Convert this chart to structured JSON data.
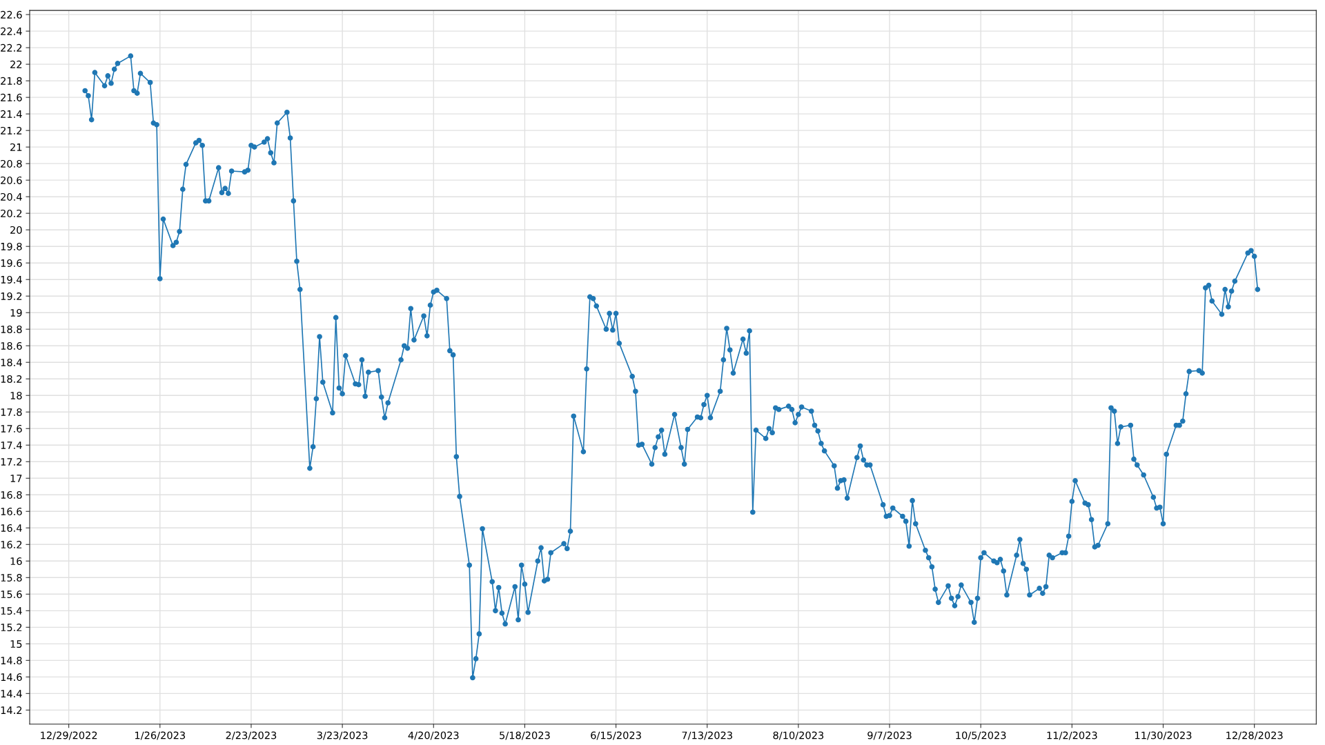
{
  "chart_data": {
    "type": "line",
    "xlim": [
      "2022-12-17",
      "2024-01-16"
    ],
    "xticks": [
      {
        "value": "2022-12-29",
        "label": "12/29/2022"
      },
      {
        "value": "2023-01-26",
        "label": "1/26/2023"
      },
      {
        "value": "2023-02-23",
        "label": "2/23/2023"
      },
      {
        "value": "2023-03-23",
        "label": "3/23/2023"
      },
      {
        "value": "2023-04-20",
        "label": "4/20/2023"
      },
      {
        "value": "2023-05-18",
        "label": "5/18/2023"
      },
      {
        "value": "2023-06-15",
        "label": "6/15/2023"
      },
      {
        "value": "2023-07-13",
        "label": "7/13/2023"
      },
      {
        "value": "2023-08-10",
        "label": "8/10/2023"
      },
      {
        "value": "2023-09-07",
        "label": "9/7/2023"
      },
      {
        "value": "2023-10-05",
        "label": "10/5/2023"
      },
      {
        "value": "2023-11-02",
        "label": "11/2/2023"
      },
      {
        "value": "2023-11-30",
        "label": "11/30/2023"
      },
      {
        "value": "2023-12-28",
        "label": "12/28/2023"
      }
    ],
    "ylim": [
      14.03,
      22.65
    ],
    "yticks": [
      14.2,
      14.4,
      14.6,
      14.8,
      15,
      15.2,
      15.4,
      15.6,
      15.8,
      16,
      16.2,
      16.4,
      16.6,
      16.8,
      17,
      17.2,
      17.4,
      17.6,
      17.8,
      18,
      18.2,
      18.4,
      18.6,
      18.8,
      19,
      19.2,
      19.4,
      19.6,
      19.8,
      20,
      20.2,
      20.4,
      20.6,
      20.8,
      21,
      21.2,
      21.4,
      21.6,
      21.8,
      22,
      22.2,
      22.4,
      22.6
    ],
    "grid": true,
    "marker": "circle",
    "line_style": "solid",
    "series": [
      {
        "color": "#1f77b4",
        "x": [
          "2023-01-03",
          "2023-01-04",
          "2023-01-05",
          "2023-01-06",
          "2023-01-09",
          "2023-01-10",
          "2023-01-11",
          "2023-01-12",
          "2023-01-13",
          "2023-01-17",
          "2023-01-18",
          "2023-01-19",
          "2023-01-20",
          "2023-01-23",
          "2023-01-24",
          "2023-01-25",
          "2023-01-26",
          "2023-01-27",
          "2023-01-30",
          "2023-01-31",
          "2023-02-01",
          "2023-02-02",
          "2023-02-03",
          "2023-02-06",
          "2023-02-07",
          "2023-02-08",
          "2023-02-09",
          "2023-02-10",
          "2023-02-13",
          "2023-02-14",
          "2023-02-15",
          "2023-02-16",
          "2023-02-17",
          "2023-02-21",
          "2023-02-22",
          "2023-02-23",
          "2023-02-24",
          "2023-02-27",
          "2023-02-28",
          "2023-03-01",
          "2023-03-02",
          "2023-03-03",
          "2023-03-06",
          "2023-03-07",
          "2023-03-08",
          "2023-03-09",
          "2023-03-10",
          "2023-03-13",
          "2023-03-14",
          "2023-03-15",
          "2023-03-16",
          "2023-03-17",
          "2023-03-20",
          "2023-03-21",
          "2023-03-22",
          "2023-03-23",
          "2023-03-24",
          "2023-03-27",
          "2023-03-28",
          "2023-03-29",
          "2023-03-30",
          "2023-03-31",
          "2023-04-03",
          "2023-04-04",
          "2023-04-05",
          "2023-04-06",
          "2023-04-10",
          "2023-04-11",
          "2023-04-12",
          "2023-04-13",
          "2023-04-14",
          "2023-04-17",
          "2023-04-18",
          "2023-04-19",
          "2023-04-20",
          "2023-04-21",
          "2023-04-24",
          "2023-04-25",
          "2023-04-26",
          "2023-04-27",
          "2023-04-28",
          "2023-05-01",
          "2023-05-02",
          "2023-05-03",
          "2023-05-04",
          "2023-05-05",
          "2023-05-08",
          "2023-05-09",
          "2023-05-10",
          "2023-05-11",
          "2023-05-12",
          "2023-05-15",
          "2023-05-16",
          "2023-05-17",
          "2023-05-18",
          "2023-05-19",
          "2023-05-22",
          "2023-05-23",
          "2023-05-24",
          "2023-05-25",
          "2023-05-26",
          "2023-05-30",
          "2023-05-31",
          "2023-06-01",
          "2023-06-02",
          "2023-06-05",
          "2023-06-06",
          "2023-06-07",
          "2023-06-08",
          "2023-06-09",
          "2023-06-12",
          "2023-06-13",
          "2023-06-14",
          "2023-06-15",
          "2023-06-16",
          "2023-06-20",
          "2023-06-21",
          "2023-06-22",
          "2023-06-23",
          "2023-06-26",
          "2023-06-27",
          "2023-06-28",
          "2023-06-29",
          "2023-06-30",
          "2023-07-03",
          "2023-07-05",
          "2023-07-06",
          "2023-07-07",
          "2023-07-10",
          "2023-07-11",
          "2023-07-12",
          "2023-07-13",
          "2023-07-14",
          "2023-07-17",
          "2023-07-18",
          "2023-07-19",
          "2023-07-20",
          "2023-07-21",
          "2023-07-24",
          "2023-07-25",
          "2023-07-26",
          "2023-07-27",
          "2023-07-28",
          "2023-07-31",
          "2023-08-01",
          "2023-08-02",
          "2023-08-03",
          "2023-08-04",
          "2023-08-07",
          "2023-08-08",
          "2023-08-09",
          "2023-08-10",
          "2023-08-11",
          "2023-08-14",
          "2023-08-15",
          "2023-08-16",
          "2023-08-17",
          "2023-08-18",
          "2023-08-21",
          "2023-08-22",
          "2023-08-23",
          "2023-08-24",
          "2023-08-25",
          "2023-08-28",
          "2023-08-29",
          "2023-08-30",
          "2023-08-31",
          "2023-09-01",
          "2023-09-05",
          "2023-09-06",
          "2023-09-07",
          "2023-09-08",
          "2023-09-11",
          "2023-09-12",
          "2023-09-13",
          "2023-09-14",
          "2023-09-15",
          "2023-09-18",
          "2023-09-19",
          "2023-09-20",
          "2023-09-21",
          "2023-09-22",
          "2023-09-25",
          "2023-09-26",
          "2023-09-27",
          "2023-09-28",
          "2023-09-29",
          "2023-10-02",
          "2023-10-03",
          "2023-10-04",
          "2023-10-05",
          "2023-10-06",
          "2023-10-09",
          "2023-10-10",
          "2023-10-11",
          "2023-10-12",
          "2023-10-13",
          "2023-10-16",
          "2023-10-17",
          "2023-10-18",
          "2023-10-19",
          "2023-10-20",
          "2023-10-23",
          "2023-10-24",
          "2023-10-25",
          "2023-10-26",
          "2023-10-27",
          "2023-10-30",
          "2023-10-31",
          "2023-11-01",
          "2023-11-02",
          "2023-11-03",
          "2023-11-06",
          "2023-11-07",
          "2023-11-08",
          "2023-11-09",
          "2023-11-10",
          "2023-11-13",
          "2023-11-14",
          "2023-11-15",
          "2023-11-16",
          "2023-11-17",
          "2023-11-20",
          "2023-11-21",
          "2023-11-22",
          "2023-11-24",
          "2023-11-27",
          "2023-11-28",
          "2023-11-29",
          "2023-11-30",
          "2023-12-01",
          "2023-12-04",
          "2023-12-05",
          "2023-12-06",
          "2023-12-07",
          "2023-12-08",
          "2023-12-11",
          "2023-12-12",
          "2023-12-13",
          "2023-12-14",
          "2023-12-15",
          "2023-12-18",
          "2023-12-19",
          "2023-12-20",
          "2023-12-21",
          "2023-12-22",
          "2023-12-26",
          "2023-12-27",
          "2023-12-28",
          "2023-12-29"
        ],
        "values": [
          21.68,
          21.62,
          21.33,
          21.9,
          21.74,
          21.86,
          21.77,
          21.94,
          22.01,
          22.1,
          21.68,
          21.65,
          21.89,
          21.78,
          21.29,
          21.27,
          19.41,
          20.13,
          19.81,
          19.85,
          19.98,
          20.49,
          20.79,
          21.05,
          21.08,
          21.02,
          20.35,
          20.35,
          20.75,
          20.45,
          20.5,
          20.44,
          20.71,
          20.7,
          20.72,
          21.02,
          21.0,
          21.06,
          21.1,
          20.93,
          20.81,
          21.29,
          21.42,
          21.11,
          20.35,
          19.62,
          19.28,
          17.12,
          17.38,
          17.96,
          18.71,
          18.16,
          17.79,
          18.94,
          18.09,
          18.02,
          18.48,
          18.14,
          18.13,
          18.43,
          17.99,
          18.28,
          18.3,
          17.98,
          17.73,
          17.91,
          18.43,
          18.6,
          18.57,
          19.05,
          18.67,
          18.96,
          18.72,
          19.09,
          19.25,
          19.27,
          19.17,
          18.54,
          18.49,
          17.26,
          16.78,
          15.95,
          14.59,
          14.82,
          15.12,
          16.39,
          15.75,
          15.4,
          15.68,
          15.37,
          15.24,
          15.69,
          15.29,
          15.95,
          15.72,
          15.38,
          16.0,
          16.16,
          15.76,
          15.78,
          16.1,
          16.21,
          16.15,
          16.36,
          17.75,
          17.32,
          18.32,
          19.19,
          19.17,
          19.08,
          18.8,
          18.99,
          18.79,
          18.99,
          18.63,
          18.23,
          18.05,
          17.4,
          17.41,
          17.17,
          17.37,
          17.5,
          17.58,
          17.29,
          17.77,
          17.37,
          17.17,
          17.59,
          17.74,
          17.73,
          17.89,
          18.0,
          17.73,
          18.05,
          18.43,
          18.81,
          18.55,
          18.27,
          18.68,
          18.51,
          18.78,
          16.59,
          17.58,
          17.48,
          17.6,
          17.55,
          17.85,
          17.83,
          17.87,
          17.83,
          17.67,
          17.77,
          17.86,
          17.81,
          17.64,
          17.57,
          17.42,
          17.33,
          17.15,
          16.88,
          16.97,
          16.98,
          16.76,
          17.25,
          17.39,
          17.22,
          17.16,
          17.16,
          16.68,
          16.54,
          16.55,
          16.64,
          16.54,
          16.48,
          16.18,
          16.73,
          16.45,
          16.13,
          16.04,
          15.93,
          15.66,
          15.5,
          15.7,
          15.55,
          15.46,
          15.57,
          15.71,
          15.5,
          15.26,
          15.55,
          16.04,
          16.1,
          16.0,
          15.98,
          16.02,
          15.88,
          15.59,
          16.07,
          16.26,
          15.97,
          15.9,
          15.59,
          15.67,
          15.61,
          15.69,
          16.07,
          16.04,
          16.1,
          16.1,
          16.3,
          16.72,
          16.97,
          16.7,
          16.68,
          16.5,
          16.17,
          16.19,
          16.45,
          17.85,
          17.81,
          17.42,
          17.62,
          17.64,
          17.23,
          17.16,
          17.04,
          16.77,
          16.64,
          16.65,
          16.45,
          17.29,
          17.64,
          17.64,
          17.69,
          18.02,
          18.29,
          18.3,
          18.27,
          19.3,
          19.33,
          19.14,
          18.98,
          19.28,
          19.07,
          19.26,
          19.38,
          19.72,
          19.75,
          19.68,
          19.28
        ]
      }
    ]
  }
}
